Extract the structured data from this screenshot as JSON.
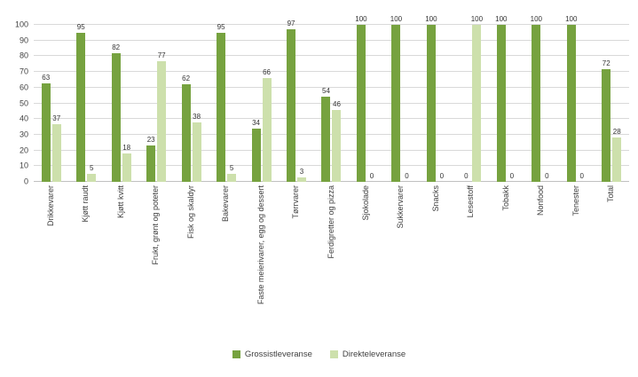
{
  "chart_data": {
    "type": "bar",
    "title": "",
    "xlabel": "",
    "ylabel": "",
    "ylim": [
      0,
      100
    ],
    "ytick_step": 10,
    "grid": true,
    "legend_position": "bottom",
    "categories": [
      "Drikkevarer",
      "Kjøtt raudt",
      "Kjøtt kvitt",
      "Frukt, grønt og poteter",
      "Fisk og skaldyr",
      "Bakevarer",
      "Faste meierivarer, egg og dessert",
      "Tørrvarer",
      "Ferdigretter og pizza",
      "Sjokolade",
      "Sukkervarer",
      "Snacks",
      "Lesestoff",
      "Tobakk",
      "Nonfood",
      "Tenester",
      "Total"
    ],
    "series": [
      {
        "name": "Grossistleveranse",
        "color": "#76a23f",
        "values": [
          63,
          95,
          82,
          23,
          62,
          95,
          34,
          97,
          54,
          100,
          100,
          100,
          0,
          100,
          100,
          100,
          72
        ]
      },
      {
        "name": "Direkteleveranse",
        "color": "#cde0ac",
        "values": [
          37,
          5,
          18,
          77,
          38,
          5,
          66,
          3,
          46,
          0,
          0,
          0,
          100,
          0,
          0,
          0,
          28
        ]
      }
    ]
  },
  "colors": {
    "grid": "#d9d9d9",
    "text": "#3f3f3f"
  }
}
